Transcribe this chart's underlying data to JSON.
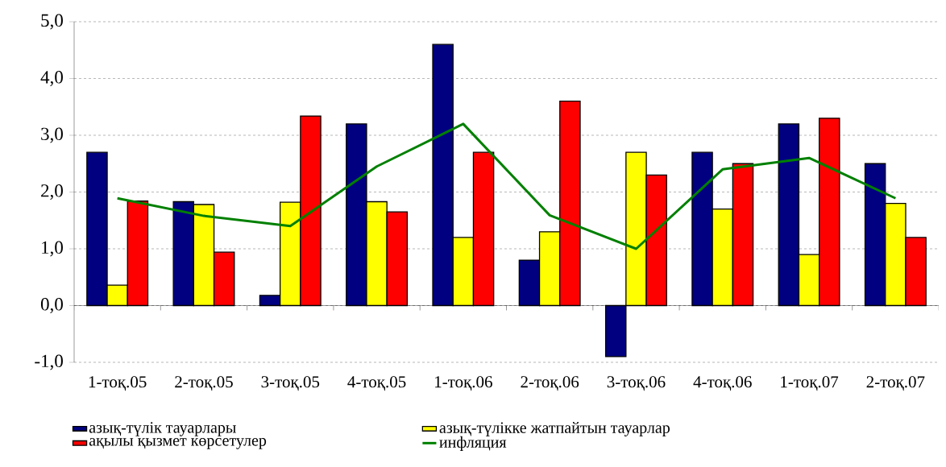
{
  "chart_data": {
    "type": "bar",
    "categories": [
      "1-тоқ.05",
      "2-тоқ.05",
      "3-тоқ.05",
      "4-тоқ.05",
      "1-тоқ.06",
      "2-тоқ.06",
      "3-тоқ.06",
      "4-тоқ.06",
      "1-тоқ.07",
      "2-тоқ.07"
    ],
    "series": [
      {
        "name": "азық-түлік тауарлары",
        "color": "#000080",
        "values": [
          2.7,
          1.83,
          0.18,
          3.2,
          4.6,
          0.8,
          -0.9,
          2.7,
          3.2,
          2.5
        ]
      },
      {
        "name": "азық-түлікке жатпайтын тауарлар",
        "color": "#ffff00",
        "values": [
          0.36,
          1.78,
          1.82,
          1.83,
          1.2,
          1.3,
          2.7,
          1.7,
          0.9,
          1.8
        ]
      },
      {
        "name": "ақылы қызмет көрсетулер",
        "color": "#ff0000",
        "values": [
          1.84,
          0.94,
          3.34,
          1.65,
          2.7,
          3.6,
          2.3,
          2.5,
          3.3,
          1.2
        ]
      },
      {
        "name": "инфляция",
        "type": "line",
        "color": "#008000",
        "values": [
          1.89,
          1.58,
          1.4,
          2.45,
          3.2,
          1.59,
          1.0,
          2.4,
          2.6,
          1.89
        ]
      }
    ],
    "ylim": [
      -1,
      5
    ],
    "yticks": [
      {
        "value": -1,
        "label": "-1,0"
      },
      {
        "value": 0,
        "label": "0,0"
      },
      {
        "value": 1,
        "label": "1,0"
      },
      {
        "value": 2,
        "label": "2,0"
      },
      {
        "value": 3,
        "label": "3,0"
      },
      {
        "value": 4,
        "label": "4,0"
      },
      {
        "value": 5,
        "label": "5,0"
      }
    ],
    "grid": "y",
    "legend": "bottom",
    "marker": "none",
    "line_style": "solid"
  }
}
